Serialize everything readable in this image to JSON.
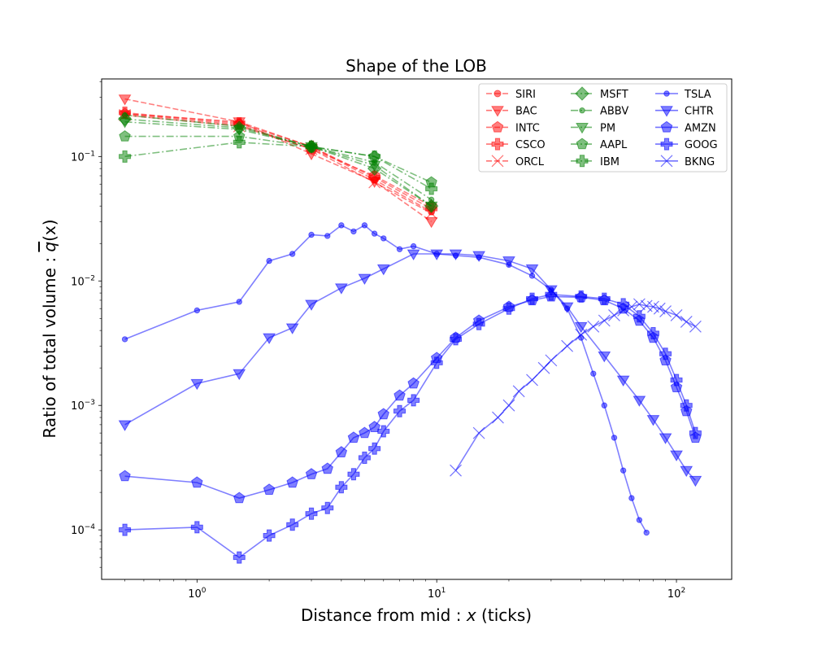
{
  "chart_data": {
    "type": "line",
    "title": "Shape of the LOB",
    "xlabel_prefix": "Distance from mid : ",
    "xlabel_var": "x",
    "xlabel_suffix": " (ticks)",
    "ylabel_prefix": "Ratio of total volume : ",
    "ylabel_var": "q",
    "ylabel_suffix": "(x)",
    "xscale": "log",
    "yscale": "log",
    "xlim": [
      0.4,
      170
    ],
    "ylim": [
      4e-05,
      0.42
    ],
    "grid": false,
    "legend_location": "upper right",
    "x_ticks": [
      {
        "value": 1,
        "mantissa": "10",
        "exp": "0"
      },
      {
        "value": 10,
        "mantissa": "10",
        "exp": "1"
      },
      {
        "value": 100,
        "mantissa": "10",
        "exp": "2"
      }
    ],
    "y_ticks": [
      {
        "value": 0.0001,
        "mantissa": "10",
        "exp": "−4"
      },
      {
        "value": 0.001,
        "mantissa": "10",
        "exp": "−3"
      },
      {
        "value": 0.01,
        "mantissa": "10",
        "exp": "−2"
      },
      {
        "value": 0.1,
        "mantissa": "10",
        "exp": "−1"
      }
    ],
    "series": [
      {
        "name": "SIRI",
        "color": "#ff0000",
        "marker": "circle",
        "dash": "dashed",
        "x": [
          0.5,
          1.5,
          3,
          5.5,
          9.5
        ],
        "y": [
          0.22,
          0.19,
          0.12,
          0.065,
          0.036
        ]
      },
      {
        "name": "BAC",
        "color": "#ff0000",
        "marker": "triangle-down",
        "dash": "dashed",
        "x": [
          0.5,
          1.5,
          3,
          5.5,
          9.5
        ],
        "y": [
          0.29,
          0.19,
          0.105,
          0.063,
          0.03
        ]
      },
      {
        "name": "INTC",
        "color": "#ff0000",
        "marker": "pentagon",
        "dash": "dashed",
        "x": [
          0.5,
          1.5,
          3,
          5.5,
          9.5
        ],
        "y": [
          0.22,
          0.18,
          0.115,
          0.07,
          0.04
        ]
      },
      {
        "name": "CSCO",
        "color": "#ff0000",
        "marker": "plus",
        "dash": "dashed",
        "x": [
          0.5,
          1.5,
          3,
          5.5,
          9.5
        ],
        "y": [
          0.225,
          0.185,
          0.12,
          0.068,
          0.038
        ]
      },
      {
        "name": "ORCL",
        "color": "#ff0000",
        "marker": "x",
        "dash": "dashed",
        "x": [
          0.5,
          1.5,
          3,
          5.5,
          9.5
        ],
        "y": [
          0.215,
          0.175,
          0.115,
          0.062,
          0.035
        ]
      },
      {
        "name": "MSFT",
        "color": "#008000",
        "marker": "diamond",
        "dash": "dashdot",
        "x": [
          0.5,
          1.5,
          3,
          5.5,
          9.5
        ],
        "y": [
          0.2,
          0.17,
          0.12,
          0.08,
          0.04
        ]
      },
      {
        "name": "ABBV",
        "color": "#008000",
        "marker": "circle-small",
        "dash": "dashdot",
        "x": [
          0.5,
          1.5,
          3,
          5.5,
          9.5
        ],
        "y": [
          0.215,
          0.175,
          0.12,
          0.09,
          0.045
        ]
      },
      {
        "name": "PM",
        "color": "#008000",
        "marker": "triangle-down",
        "dash": "dashdot",
        "x": [
          0.5,
          1.5,
          3,
          5.5,
          9.5
        ],
        "y": [
          0.19,
          0.165,
          0.12,
          0.085,
          0.04
        ]
      },
      {
        "name": "AAPL",
        "color": "#008000",
        "marker": "pentagon",
        "dash": "dashdot",
        "x": [
          0.5,
          1.5,
          3,
          5.5,
          9.5
        ],
        "y": [
          0.145,
          0.145,
          0.12,
          0.1,
          0.062
        ]
      },
      {
        "name": "IBM",
        "color": "#008000",
        "marker": "plus",
        "dash": "dashdot",
        "x": [
          0.5,
          1.5,
          3,
          5.5,
          9.5
        ],
        "y": [
          0.1,
          0.13,
          0.12,
          0.1,
          0.055
        ]
      },
      {
        "name": "TSLA",
        "color": "#0000ff",
        "marker": "circle-small",
        "dash": "solid",
        "x": [
          0.5,
          1,
          1.5,
          2,
          2.5,
          3,
          3.5,
          4,
          4.5,
          5,
          5.5,
          6,
          7,
          8,
          10,
          12,
          15,
          20,
          25,
          30,
          35,
          40,
          45,
          50,
          55,
          60,
          65,
          70,
          75
        ],
        "y": [
          0.0034,
          0.0058,
          0.0068,
          0.0145,
          0.0165,
          0.0235,
          0.023,
          0.028,
          0.025,
          0.028,
          0.024,
          0.022,
          0.018,
          0.019,
          0.0165,
          0.016,
          0.0155,
          0.0135,
          0.011,
          0.0085,
          0.006,
          0.0035,
          0.0018,
          0.001,
          0.00055,
          0.0003,
          0.00018,
          0.00012,
          9.5e-05
        ]
      },
      {
        "name": "CHTR",
        "color": "#0000ff",
        "marker": "triangle-down",
        "dash": "solid",
        "x": [
          0.5,
          1,
          1.5,
          2,
          2.5,
          3,
          4,
          5,
          6,
          8,
          10,
          12,
          15,
          20,
          25,
          30,
          35,
          40,
          50,
          60,
          70,
          80,
          90,
          100,
          110,
          120
        ],
        "y": [
          0.0007,
          0.0015,
          0.0018,
          0.0035,
          0.0042,
          0.0065,
          0.0088,
          0.0105,
          0.0125,
          0.0165,
          0.0165,
          0.0165,
          0.016,
          0.0145,
          0.0125,
          0.0085,
          0.0062,
          0.0043,
          0.0025,
          0.0016,
          0.0011,
          0.00077,
          0.00055,
          0.0004,
          0.0003,
          0.00025
        ]
      },
      {
        "name": "AMZN",
        "color": "#0000ff",
        "marker": "pentagon",
        "dash": "solid",
        "x": [
          0.5,
          1,
          1.5,
          2,
          2.5,
          3,
          3.5,
          4,
          4.5,
          5,
          5.5,
          6,
          7,
          8,
          10,
          12,
          15,
          20,
          25,
          30,
          40,
          50,
          60,
          70,
          80,
          90,
          100,
          110,
          120
        ],
        "y": [
          0.00027,
          0.00024,
          0.00018,
          0.00021,
          0.00024,
          0.00028,
          0.00031,
          0.00042,
          0.00055,
          0.0006,
          0.00067,
          0.00085,
          0.0012,
          0.0015,
          0.0024,
          0.0035,
          0.0048,
          0.0062,
          0.007,
          0.0075,
          0.0074,
          0.007,
          0.006,
          0.0048,
          0.0035,
          0.0023,
          0.0014,
          0.0009,
          0.00055
        ]
      },
      {
        "name": "GOOG",
        "color": "#0000ff",
        "marker": "plus",
        "dash": "solid",
        "x": [
          0.5,
          1,
          1.5,
          2,
          2.5,
          3,
          3.5,
          4,
          4.5,
          5,
          5.5,
          6,
          7,
          8,
          10,
          12,
          15,
          20,
          25,
          30,
          40,
          50,
          60,
          70,
          80,
          90,
          100,
          110,
          120
        ],
        "y": [
          0.0001,
          0.000105,
          6e-05,
          9e-05,
          0.00011,
          0.000135,
          0.00015,
          0.00022,
          0.00028,
          0.00038,
          0.00045,
          0.00062,
          0.0009,
          0.0011,
          0.0022,
          0.0034,
          0.0045,
          0.006,
          0.0072,
          0.0078,
          0.0075,
          0.0072,
          0.0065,
          0.0052,
          0.0038,
          0.0026,
          0.0016,
          0.001,
          0.0006
        ]
      },
      {
        "name": "BKNG",
        "color": "#0000ff",
        "marker": "x",
        "dash": "solid",
        "x": [
          12,
          15,
          18,
          20,
          22,
          25,
          28,
          30,
          35,
          40,
          45,
          50,
          55,
          60,
          65,
          70,
          75,
          80,
          85,
          90,
          100,
          110,
          120
        ],
        "y": [
          0.0003,
          0.0006,
          0.0008,
          0.001,
          0.0013,
          0.0016,
          0.002,
          0.0023,
          0.003,
          0.0037,
          0.0043,
          0.0048,
          0.0053,
          0.0058,
          0.0062,
          0.0065,
          0.0063,
          0.0062,
          0.006,
          0.0057,
          0.0053,
          0.0047,
          0.0043
        ]
      }
    ]
  }
}
